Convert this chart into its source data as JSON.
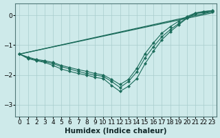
{
  "xlabel": "Humidex (Indice chaleur)",
  "background_color": "#ceeaea",
  "grid_color": "#a8cccc",
  "line_color": "#1a6b5a",
  "xlim": [
    -0.5,
    23.5
  ],
  "ylim": [
    -3.4,
    0.4
  ],
  "yticks": [
    0,
    -1,
    -2,
    -3
  ],
  "xticks": [
    0,
    1,
    2,
    3,
    4,
    5,
    6,
    7,
    8,
    9,
    10,
    11,
    12,
    13,
    14,
    15,
    16,
    17,
    18,
    19,
    20,
    21,
    22,
    23
  ],
  "series": [
    {
      "x": [
        0,
        23
      ],
      "y": [
        -1.3,
        0.12
      ],
      "has_markers": false
    },
    {
      "x": [
        0,
        23
      ],
      "y": [
        -1.3,
        0.08
      ],
      "has_markers": false
    },
    {
      "x": [
        0,
        1,
        2,
        3,
        4,
        5,
        6,
        7,
        8,
        9,
        10,
        11,
        12,
        13,
        14,
        15,
        16,
        17,
        18,
        19,
        20,
        21,
        22,
        23
      ],
      "y": [
        -1.3,
        -1.45,
        -1.52,
        -1.58,
        -1.68,
        -1.8,
        -1.88,
        -1.95,
        -2.0,
        -2.08,
        -2.12,
        -2.35,
        -2.55,
        -2.38,
        -2.12,
        -1.62,
        -1.2,
        -0.82,
        -0.55,
        -0.32,
        -0.1,
        0.05,
        0.1,
        0.12
      ],
      "has_markers": true
    },
    {
      "x": [
        0,
        1,
        2,
        3,
        4,
        5,
        6,
        7,
        8,
        9,
        10,
        11,
        12,
        13,
        14,
        15,
        16,
        17,
        18,
        19,
        20,
        21,
        22,
        23
      ],
      "y": [
        -1.3,
        -1.42,
        -1.5,
        -1.55,
        -1.62,
        -1.72,
        -1.8,
        -1.88,
        -1.95,
        -2.0,
        -2.05,
        -2.22,
        -2.42,
        -2.22,
        -1.9,
        -1.42,
        -1.05,
        -0.72,
        -0.48,
        -0.28,
        -0.08,
        0.07,
        0.12,
        0.15
      ],
      "has_markers": true
    },
    {
      "x": [
        0,
        1,
        2,
        3,
        4,
        5,
        6,
        7,
        8,
        9,
        10,
        11,
        12,
        13,
        14,
        15,
        16,
        17,
        18,
        19,
        20,
        21,
        22,
        23
      ],
      "y": [
        -1.3,
        -1.4,
        -1.48,
        -1.52,
        -1.58,
        -1.68,
        -1.75,
        -1.82,
        -1.88,
        -1.95,
        -2.0,
        -2.15,
        -2.32,
        -2.15,
        -1.78,
        -1.28,
        -0.92,
        -0.6,
        -0.38,
        -0.2,
        -0.04,
        0.08,
        0.13,
        0.16
      ],
      "has_markers": true
    }
  ]
}
